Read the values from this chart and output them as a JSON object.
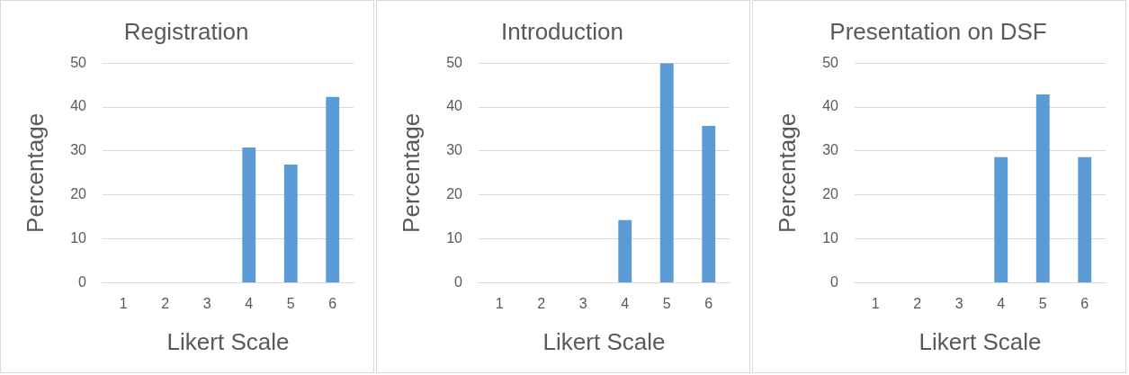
{
  "chart_data": [
    {
      "type": "bar",
      "title": "Registration",
      "xlabel": "Likert Scale",
      "ylabel": "Percentage",
      "categories": [
        "1",
        "2",
        "3",
        "4",
        "5",
        "6"
      ],
      "values": [
        0,
        0,
        0,
        30.8,
        26.9,
        42.3
      ],
      "color": "#5b9bd5",
      "ylim": [
        0,
        50
      ],
      "yticks": [
        0,
        10,
        20,
        30,
        40,
        50
      ],
      "grid": "y"
    },
    {
      "type": "bar",
      "title": "Introduction",
      "xlabel": "Likert Scale",
      "ylabel": "Percentage",
      "categories": [
        "1",
        "2",
        "3",
        "4",
        "5",
        "6"
      ],
      "values": [
        0,
        0,
        0,
        14.3,
        50,
        35.7
      ],
      "color": "#5b9bd5",
      "ylim": [
        0,
        50
      ],
      "yticks": [
        0,
        10,
        20,
        30,
        40,
        50
      ],
      "grid": "y"
    },
    {
      "type": "bar",
      "title": "Presentation on DSF",
      "xlabel": "Likert Scale",
      "ylabel": "Percentage",
      "categories": [
        "1",
        "2",
        "3",
        "4",
        "5",
        "6"
      ],
      "values": [
        0,
        0,
        0,
        28.6,
        42.9,
        28.6
      ],
      "color": "#5b9bd5",
      "ylim": [
        0,
        50
      ],
      "yticks": [
        0,
        10,
        20,
        30,
        40,
        50
      ],
      "grid": "y"
    }
  ]
}
